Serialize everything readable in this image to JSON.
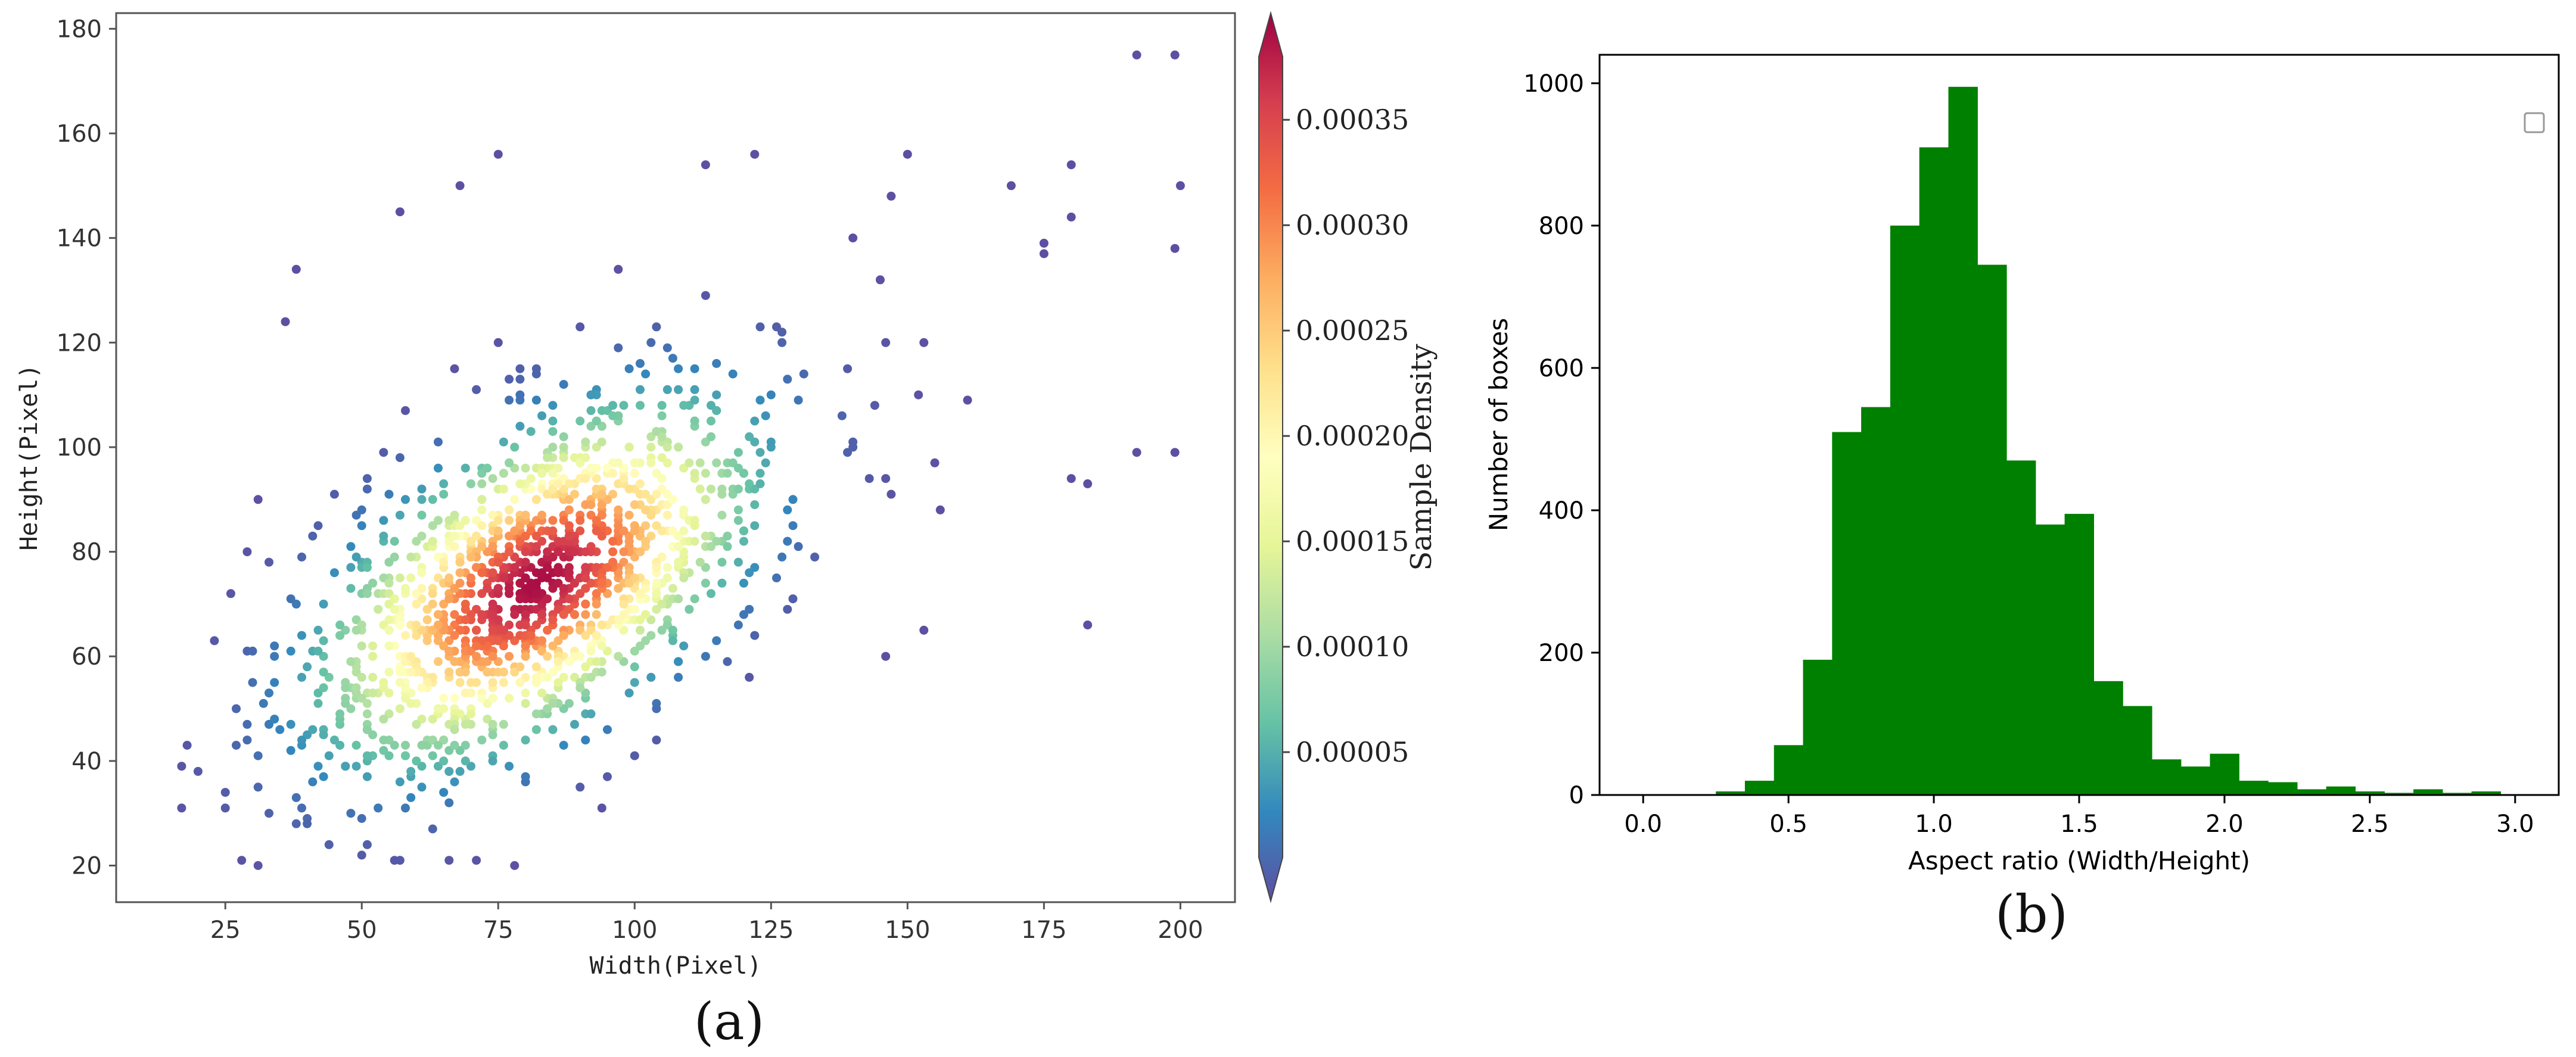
{
  "chart_data": [
    {
      "type": "scatter",
      "caption": "(a)",
      "xlabel": "Width(Pixel)",
      "ylabel": "Height(Pixel)",
      "xlim": [
        5,
        210
      ],
      "ylim": [
        13,
        183
      ],
      "xticks": [
        25,
        50,
        75,
        100,
        125,
        150,
        175,
        200
      ],
      "yticks": [
        20,
        40,
        60,
        80,
        100,
        120,
        140,
        160,
        180
      ],
      "grid": false,
      "colorbar": {
        "label": "Sample Density",
        "colormap": "Spectral_r",
        "range": [
          0,
          0.00038
        ],
        "ticks": [
          5e-05,
          0.0001,
          0.00015,
          0.0002,
          0.00025,
          0.0003,
          0.00035
        ],
        "tick_labels": [
          "0.00005",
          "0.00010",
          "0.00015",
          "0.00020",
          "0.00025",
          "0.00030",
          "0.00035"
        ],
        "extend": "both"
      },
      "point_count": 1400,
      "distribution": {
        "center": [
          82,
          74
        ],
        "sd": [
          22,
          19
        ],
        "correlation": 0.55,
        "x_range": [
          16,
          200
        ],
        "y_range": [
          20,
          180
        ]
      },
      "outliers": [
        [
          192,
          175
        ],
        [
          199,
          175
        ],
        [
          200,
          150
        ],
        [
          199,
          138
        ],
        [
          175,
          139
        ],
        [
          175,
          137
        ],
        [
          169,
          150
        ],
        [
          180,
          154
        ],
        [
          180,
          144
        ],
        [
          180,
          94
        ],
        [
          183,
          93
        ],
        [
          183,
          66
        ],
        [
          192,
          99
        ],
        [
          199,
          99
        ],
        [
          156,
          88
        ],
        [
          161,
          109
        ],
        [
          155,
          97
        ],
        [
          152,
          110
        ],
        [
          153,
          65
        ],
        [
          146,
          60
        ],
        [
          150,
          156
        ],
        [
          147,
          148
        ],
        [
          145,
          132
        ],
        [
          140,
          140
        ],
        [
          122,
          156
        ],
        [
          113,
          154
        ],
        [
          75,
          156
        ],
        [
          68,
          150
        ],
        [
          57,
          145
        ],
        [
          38,
          134
        ],
        [
          36,
          124
        ],
        [
          31,
          90
        ],
        [
          17,
          39
        ],
        [
          17,
          31
        ],
        [
          31,
          20
        ],
        [
          57,
          21
        ],
        [
          66,
          21
        ],
        [
          31,
          35
        ],
        [
          25,
          31
        ]
      ]
    },
    {
      "type": "bar",
      "caption": "(b)",
      "xlabel": "Aspect ratio (Width/Height)",
      "ylabel": "Number of boxes",
      "xlim": [
        -0.15,
        3.15
      ],
      "ylim": [
        0,
        1040
      ],
      "xticks": [
        0.0,
        0.5,
        1.0,
        1.5,
        2.0,
        2.5,
        3.0
      ],
      "xtick_labels": [
        "0.0",
        "0.5",
        "1.0",
        "1.5",
        "2.0",
        "2.5",
        "3.0"
      ],
      "yticks": [
        0,
        200,
        400,
        600,
        800,
        1000
      ],
      "bin_width": 0.1,
      "bin_edges_start": 0.25,
      "bins": [
        {
          "x": 0.25,
          "value": 5
        },
        {
          "x": 0.35,
          "value": 20
        },
        {
          "x": 0.45,
          "value": 70
        },
        {
          "x": 0.55,
          "value": 190
        },
        {
          "x": 0.65,
          "value": 510
        },
        {
          "x": 0.75,
          "value": 545
        },
        {
          "x": 0.85,
          "value": 800
        },
        {
          "x": 0.95,
          "value": 910
        },
        {
          "x": 1.05,
          "value": 995
        },
        {
          "x": 1.15,
          "value": 745
        },
        {
          "x": 1.25,
          "value": 470
        },
        {
          "x": 1.35,
          "value": 380
        },
        {
          "x": 1.45,
          "value": 395
        },
        {
          "x": 1.55,
          "value": 160
        },
        {
          "x": 1.65,
          "value": 125
        },
        {
          "x": 1.75,
          "value": 50
        },
        {
          "x": 1.85,
          "value": 40
        },
        {
          "x": 1.95,
          "value": 58
        },
        {
          "x": 2.05,
          "value": 20
        },
        {
          "x": 2.15,
          "value": 18
        },
        {
          "x": 2.25,
          "value": 8
        },
        {
          "x": 2.35,
          "value": 12
        },
        {
          "x": 2.45,
          "value": 5
        },
        {
          "x": 2.55,
          "value": 3
        },
        {
          "x": 2.65,
          "value": 8
        },
        {
          "x": 2.75,
          "value": 3
        },
        {
          "x": 2.85,
          "value": 5
        }
      ],
      "bar_color": "#008000",
      "legend": "top-right (empty)"
    }
  ]
}
